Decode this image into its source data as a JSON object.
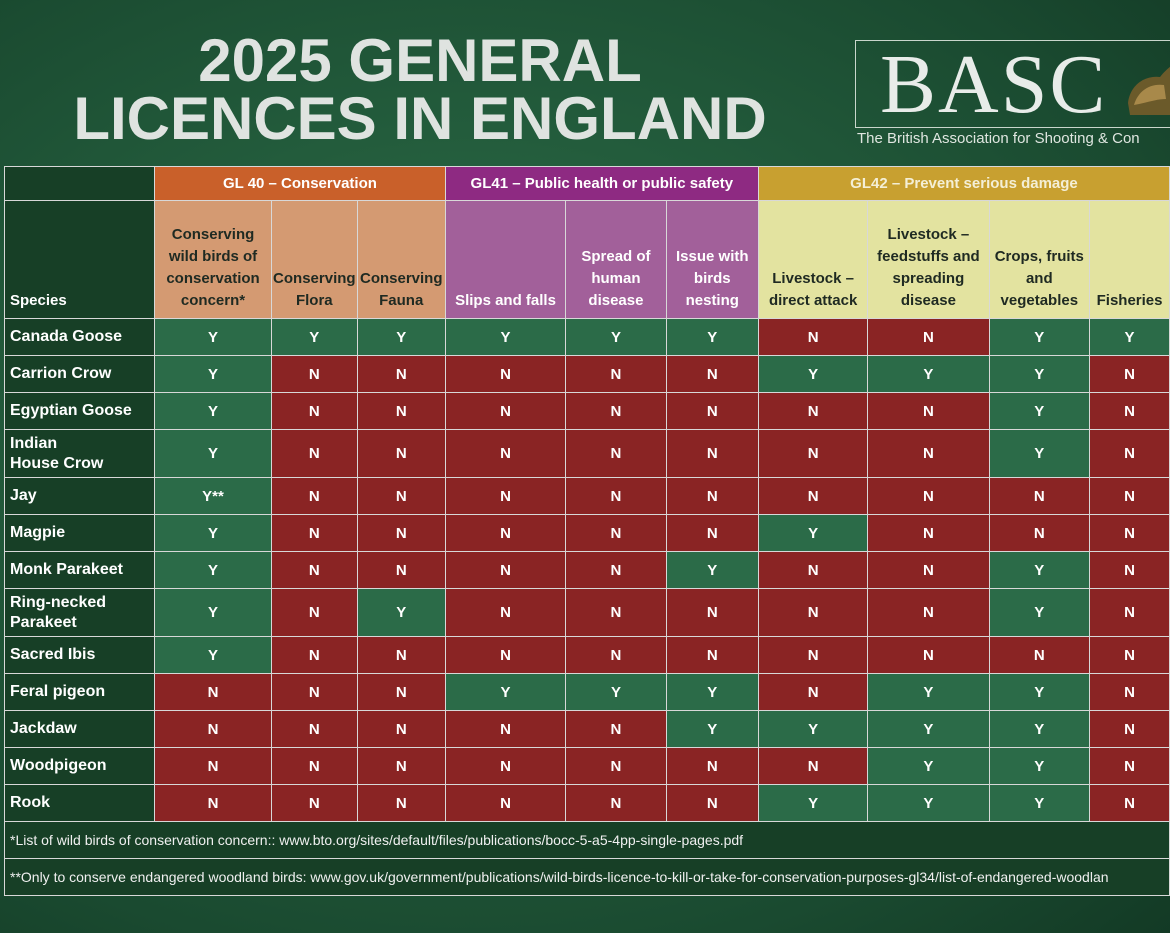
{
  "title": {
    "line1": "2025 GENERAL",
    "line2": "LICENCES IN ENGLAND"
  },
  "logo": {
    "name": "BASC",
    "subtitle": "The British Association for Shooting & Con"
  },
  "colors": {
    "yes": "#2b6b48",
    "no": "#8a2424",
    "gl40": "#c9602a",
    "gl41": "#8e2a82",
    "gl42": "#c8a030"
  },
  "groups": {
    "gl40": "GL 40 – Conservation",
    "gl41": "GL41 – Public health or public safety",
    "gl42": "GL42 – Prevent serious damage"
  },
  "headers": {
    "species": "Species",
    "c1": "Conserving wild birds of conservation concern*",
    "c2": "Conserving Flora",
    "c3": "Conserving Fauna",
    "c4": "Slips and falls",
    "c5": "Spread of human disease",
    "c6": "Issue with birds nesting",
    "c7": "Livestock – direct attack",
    "c8": "Livestock – feedstuffs and spreading disease",
    "c9": "Crops, fruits and vegetables",
    "c10": "Fisheries"
  },
  "rows": [
    {
      "species": "Canada Goose",
      "v": [
        "Y",
        "Y",
        "Y",
        "Y",
        "Y",
        "Y",
        "N",
        "N",
        "Y",
        "Y"
      ]
    },
    {
      "species": "Carrion Crow",
      "v": [
        "Y",
        "N",
        "N",
        "N",
        "N",
        "N",
        "Y",
        "Y",
        "Y",
        "N"
      ]
    },
    {
      "species": "Egyptian Goose",
      "v": [
        "Y",
        "N",
        "N",
        "N",
        "N",
        "N",
        "N",
        "N",
        "Y",
        "N"
      ]
    },
    {
      "species": "Indian House Crow",
      "v": [
        "Y",
        "N",
        "N",
        "N",
        "N",
        "N",
        "N",
        "N",
        "Y",
        "N"
      ]
    },
    {
      "species": "Jay",
      "v": [
        "Y**",
        "N",
        "N",
        "N",
        "N",
        "N",
        "N",
        "N",
        "N",
        "N"
      ]
    },
    {
      "species": "Magpie",
      "v": [
        "Y",
        "N",
        "N",
        "N",
        "N",
        "N",
        "Y",
        "N",
        "N",
        "N"
      ]
    },
    {
      "species": "Monk Parakeet",
      "v": [
        "Y",
        "N",
        "N",
        "N",
        "N",
        "Y",
        "N",
        "N",
        "Y",
        "N"
      ]
    },
    {
      "species": "Ring-necked Parakeet",
      "v": [
        "Y",
        "N",
        "Y",
        "N",
        "N",
        "N",
        "N",
        "N",
        "Y",
        "N"
      ]
    },
    {
      "species": "Sacred Ibis",
      "v": [
        "Y",
        "N",
        "N",
        "N",
        "N",
        "N",
        "N",
        "N",
        "N",
        "N"
      ]
    },
    {
      "species": "Feral pigeon",
      "v": [
        "N",
        "N",
        "N",
        "Y",
        "Y",
        "Y",
        "N",
        "Y",
        "Y",
        "N"
      ]
    },
    {
      "species": "Jackdaw",
      "v": [
        "N",
        "N",
        "N",
        "N",
        "N",
        "Y",
        "Y",
        "Y",
        "Y",
        "N"
      ]
    },
    {
      "species": "Woodpigeon",
      "v": [
        "N",
        "N",
        "N",
        "N",
        "N",
        "N",
        "N",
        "Y",
        "Y",
        "N"
      ]
    },
    {
      "species": "Rook",
      "v": [
        "N",
        "N",
        "N",
        "N",
        "N",
        "N",
        "Y",
        "Y",
        "Y",
        "N"
      ]
    }
  ],
  "footnotes": {
    "f1": "*List of wild birds of conservation concern:: www.bto.org/sites/default/files/publications/bocc-5-a5-4pp-single-pages.pdf",
    "f2": "**Only to conserve endangered woodland birds: www.gov.uk/government/publications/wild-birds-licence-to-kill-or-take-for-conservation-purposes-gl34/list-of-endangered-woodlan"
  }
}
